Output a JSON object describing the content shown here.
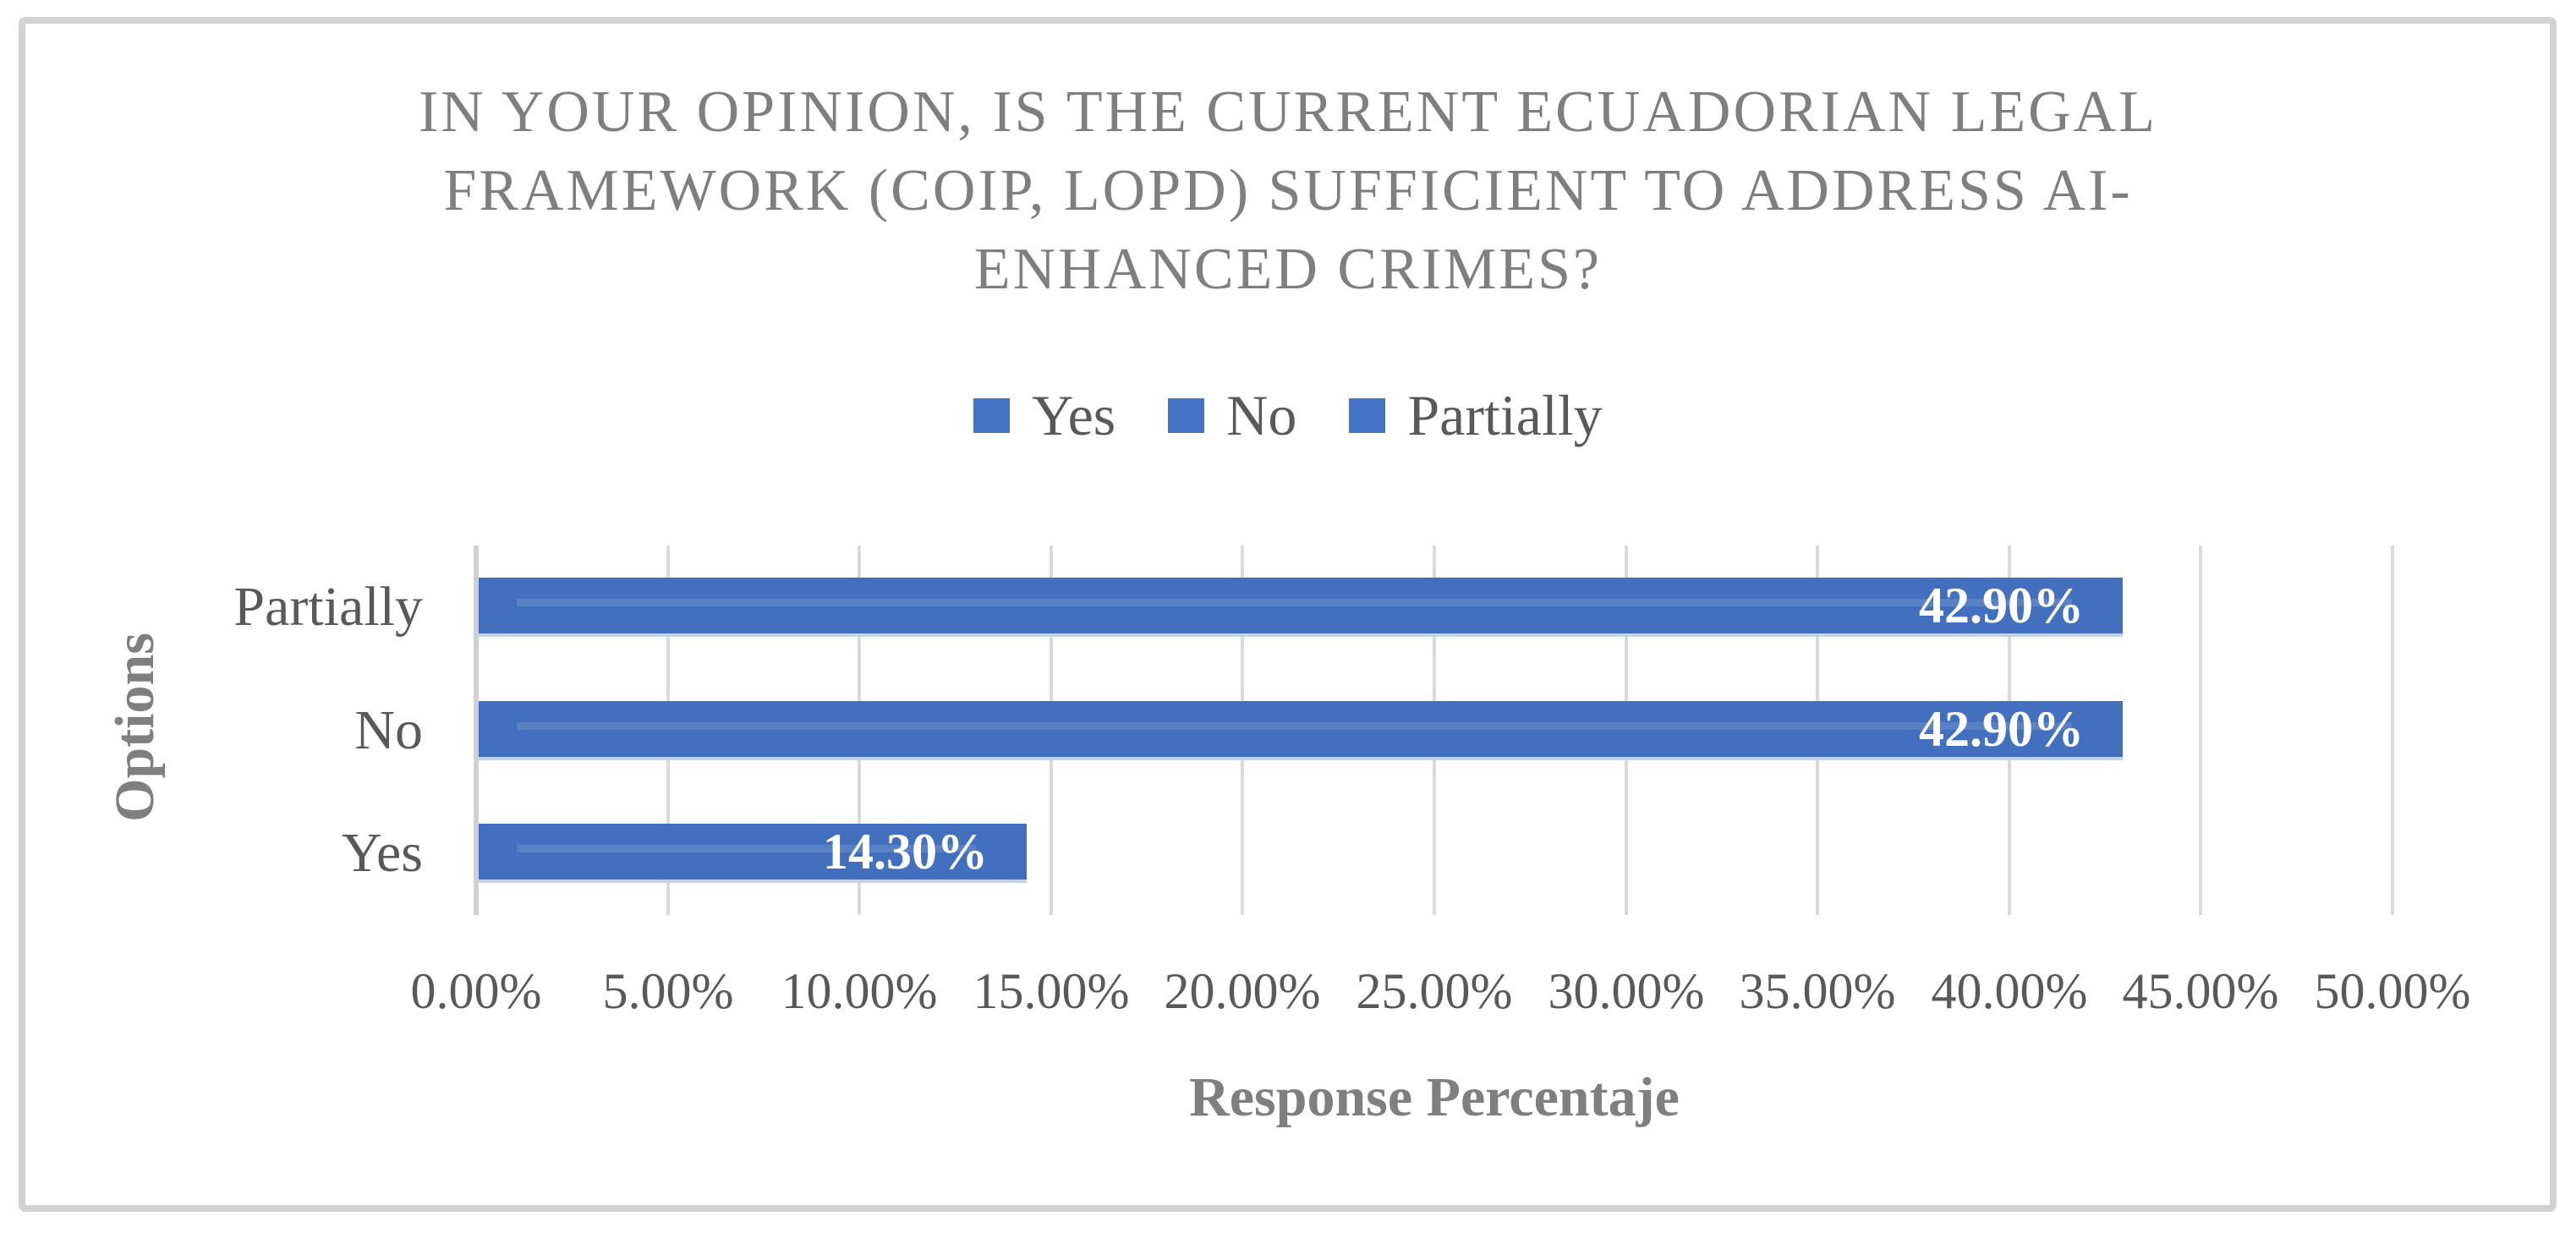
{
  "chart_data": {
    "type": "bar",
    "orientation": "horizontal",
    "title": "IN YOUR OPINION, IS THE CURRENT ECUADORIAN LEGAL FRAMEWORK (COIP, LOPD) SUFFICIENT TO ADDRESS AI-ENHANCED CRIMES?",
    "title_lines": [
      "IN YOUR OPINION, IS THE CURRENT ECUADORIAN LEGAL",
      "FRAMEWORK (COIP, LOPD) SUFFICIENT TO ADDRESS AI-",
      "ENHANCED CRIMES?"
    ],
    "xlabel": "Response Percentaje",
    "ylabel": "Options",
    "legend_entries": [
      "Yes",
      "No",
      "Partially"
    ],
    "legend_position": "top-center",
    "categories_top_to_bottom": [
      "Partially",
      "No",
      "Yes"
    ],
    "bars": [
      {
        "category": "Partially",
        "value": 42.9,
        "label": "42.90%"
      },
      {
        "category": "No",
        "value": 42.9,
        "label": "42.90%"
      },
      {
        "category": "Yes",
        "value": 14.3,
        "label": "14.30%"
      }
    ],
    "xlim": [
      0,
      50
    ],
    "x_ticks": [
      "0.00%",
      "5.00%",
      "10.00%",
      "15.00%",
      "20.00%",
      "25.00%",
      "30.00%",
      "35.00%",
      "40.00%",
      "45.00%",
      "50.00%"
    ],
    "grid": "vertical-gridlines-on",
    "colors": {
      "bar_fill": "#4270be",
      "bar_bottom_edge": "#c2d0eb",
      "legend_swatch": "#4472c4",
      "gridline": "#dadada",
      "axis_line": "#d0d0d0",
      "title_text": "#7f7f7f",
      "axis_title_text": "#7f7f7f",
      "tick_text": "#595959",
      "value_label_text": "#ffffff",
      "frame_border": "#d2d2d2",
      "background": "#ffffff"
    }
  }
}
